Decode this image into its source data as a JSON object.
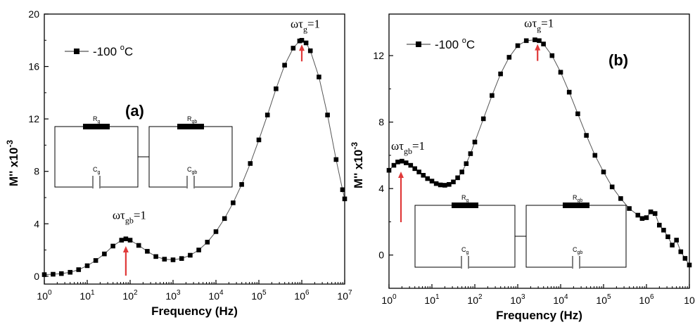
{
  "chart_data": [
    {
      "type": "scatter",
      "panel": "(a)",
      "xlabel": "Frequency (Hz)",
      "ylabel": "M'' x10",
      "ylabel_exp": "-3",
      "xscale": "log",
      "xlim": [
        1,
        10000000
      ],
      "ylim": [
        -0.6,
        20
      ],
      "yticks": [
        0,
        4,
        8,
        12,
        16,
        20
      ],
      "xticks": [
        {
          "base": "10",
          "exp": "0",
          "value": 1
        },
        {
          "base": "10",
          "exp": "1",
          "value": 10
        },
        {
          "base": "10",
          "exp": "2",
          "value": 100
        },
        {
          "base": "10",
          "exp": "3",
          "value": 1000
        },
        {
          "base": "10",
          "exp": "4",
          "value": 10000
        },
        {
          "base": "10",
          "exp": "5",
          "value": 100000
        },
        {
          "base": "10",
          "exp": "6",
          "value": 1000000
        },
        {
          "base": "10",
          "exp": "7",
          "value": 10000000
        }
      ],
      "legend": {
        "label": "-100 ",
        "unit": "C",
        "degree": "o",
        "position": "top-left"
      },
      "series": [
        {
          "name": "-100 °C",
          "marker": "square",
          "color": "#000000",
          "x": [
            1.0,
            1.6,
            2.5,
            4.0,
            6.3,
            10.0,
            15.8,
            25.1,
            39.8,
            63.1,
            79.4,
            100.0,
            158.5,
            251.2,
            398.1,
            631.0,
            1000.0,
            1584.9,
            2511.9,
            3981.1,
            6309.6,
            10000.0,
            15848.9,
            25118.9,
            39810.7,
            63095.7,
            100000.0,
            158489.3,
            251188.6,
            398107.2,
            630957.3,
            891250.9,
            1000000.0,
            1258925.4,
            1584893.2,
            2511886.4,
            3981071.7,
            6309573.4,
            8912509.4,
            10000000.0
          ],
          "y": [
            0.12,
            0.15,
            0.2,
            0.3,
            0.5,
            0.8,
            1.2,
            1.7,
            2.3,
            2.75,
            2.85,
            2.75,
            2.35,
            1.9,
            1.5,
            1.3,
            1.25,
            1.35,
            1.6,
            2.0,
            2.6,
            3.4,
            4.4,
            5.6,
            7.0,
            8.6,
            10.4,
            12.3,
            14.3,
            16.1,
            17.4,
            17.95,
            18.0,
            17.8,
            17.2,
            15.2,
            12.3,
            8.9,
            6.6,
            5.9
          ]
        }
      ],
      "annotations": [
        {
          "kind": "omega-tau",
          "sub": "gb",
          "text": "=1",
          "x": 79.4,
          "y": 2.85
        },
        {
          "kind": "omega-tau",
          "sub": "g",
          "text": "=1",
          "x": 1000000.0,
          "y": 18.0
        }
      ],
      "circuit": {
        "r1": "R",
        "r1sub": "g",
        "c1": "C",
        "c1sub": "g",
        "r2": "R",
        "r2sub": "gb",
        "c2": "C",
        "c2sub": "gb"
      }
    },
    {
      "type": "scatter",
      "panel": "(b)",
      "xlabel": "Frequency (Hz)",
      "ylabel": "M'' x10",
      "ylabel_exp": "-3",
      "xscale": "log",
      "xlim": [
        1,
        10000000
      ],
      "ylim": [
        -2,
        14.5
      ],
      "yticks": [
        0,
        4,
        8,
        12
      ],
      "xticks": [
        {
          "base": "10",
          "exp": "0",
          "value": 1
        },
        {
          "base": "10",
          "exp": "1",
          "value": 10
        },
        {
          "base": "10",
          "exp": "2",
          "value": 100
        },
        {
          "base": "10",
          "exp": "3",
          "value": 1000
        },
        {
          "base": "10",
          "exp": "4",
          "value": 10000
        },
        {
          "base": "10",
          "exp": "5",
          "value": 100000
        },
        {
          "base": "10",
          "exp": "6",
          "value": 1000000
        },
        {
          "base": "10",
          "exp": "",
          "value": 10000000
        }
      ],
      "legend": {
        "label": "-100 ",
        "unit": "C",
        "degree": "o",
        "position": "top-left"
      },
      "series": [
        {
          "name": "-100 °C",
          "marker": "square",
          "color": "#000000",
          "x": [
            1.0,
            1.3,
            1.6,
            2.0,
            2.5,
            3.2,
            4.0,
            5.0,
            6.3,
            7.9,
            10.0,
            12.6,
            15.8,
            20.0,
            25.1,
            31.6,
            39.8,
            50.1,
            63.1,
            79.4,
            100.0,
            158.5,
            251.2,
            398.1,
            631.0,
            1000.0,
            1584.9,
            2511.9,
            3162.3,
            3981.1,
            6309.6,
            10000.0,
            15848.9,
            25118.9,
            39810.7,
            63095.7,
            100000.0,
            158489.3,
            251188.6,
            398107.2,
            630957.3,
            794328.2,
            1000000.0,
            1258925.4,
            1584893.2,
            1995262.3,
            2511886.4,
            3162277.7,
            3981071.7,
            5011872.3,
            6309573.4,
            7943282.3,
            10000000.0
          ],
          "y": [
            5.1,
            5.4,
            5.6,
            5.65,
            5.55,
            5.4,
            5.2,
            5.0,
            4.8,
            4.6,
            4.45,
            4.3,
            4.22,
            4.2,
            4.25,
            4.4,
            4.65,
            5.0,
            5.5,
            6.1,
            6.8,
            8.2,
            9.6,
            10.9,
            11.9,
            12.6,
            12.9,
            12.95,
            12.9,
            12.7,
            12.0,
            11.0,
            9.8,
            8.5,
            7.2,
            6.0,
            5.0,
            4.1,
            3.4,
            2.8,
            2.4,
            2.2,
            2.25,
            2.6,
            2.5,
            1.8,
            1.5,
            1.1,
            0.6,
            0.9,
            0.2,
            -0.2,
            -0.6
          ]
        }
      ],
      "annotations": [
        {
          "kind": "omega-tau",
          "sub": "gb",
          "text": "=1",
          "x": 1.9,
          "y": 5.65
        },
        {
          "kind": "omega-tau",
          "sub": "g",
          "text": "=1",
          "x": 2900.0,
          "y": 12.95
        }
      ],
      "circuit": {
        "r1": "R",
        "r1sub": "g",
        "c1": "C",
        "c1sub": "g",
        "r2": "R",
        "r2sub": "gb",
        "c2": "C",
        "c2sub": "gb"
      }
    }
  ],
  "colors": {
    "marker": "#000000",
    "arrow": "#e03a3a",
    "axis": "#000000"
  }
}
